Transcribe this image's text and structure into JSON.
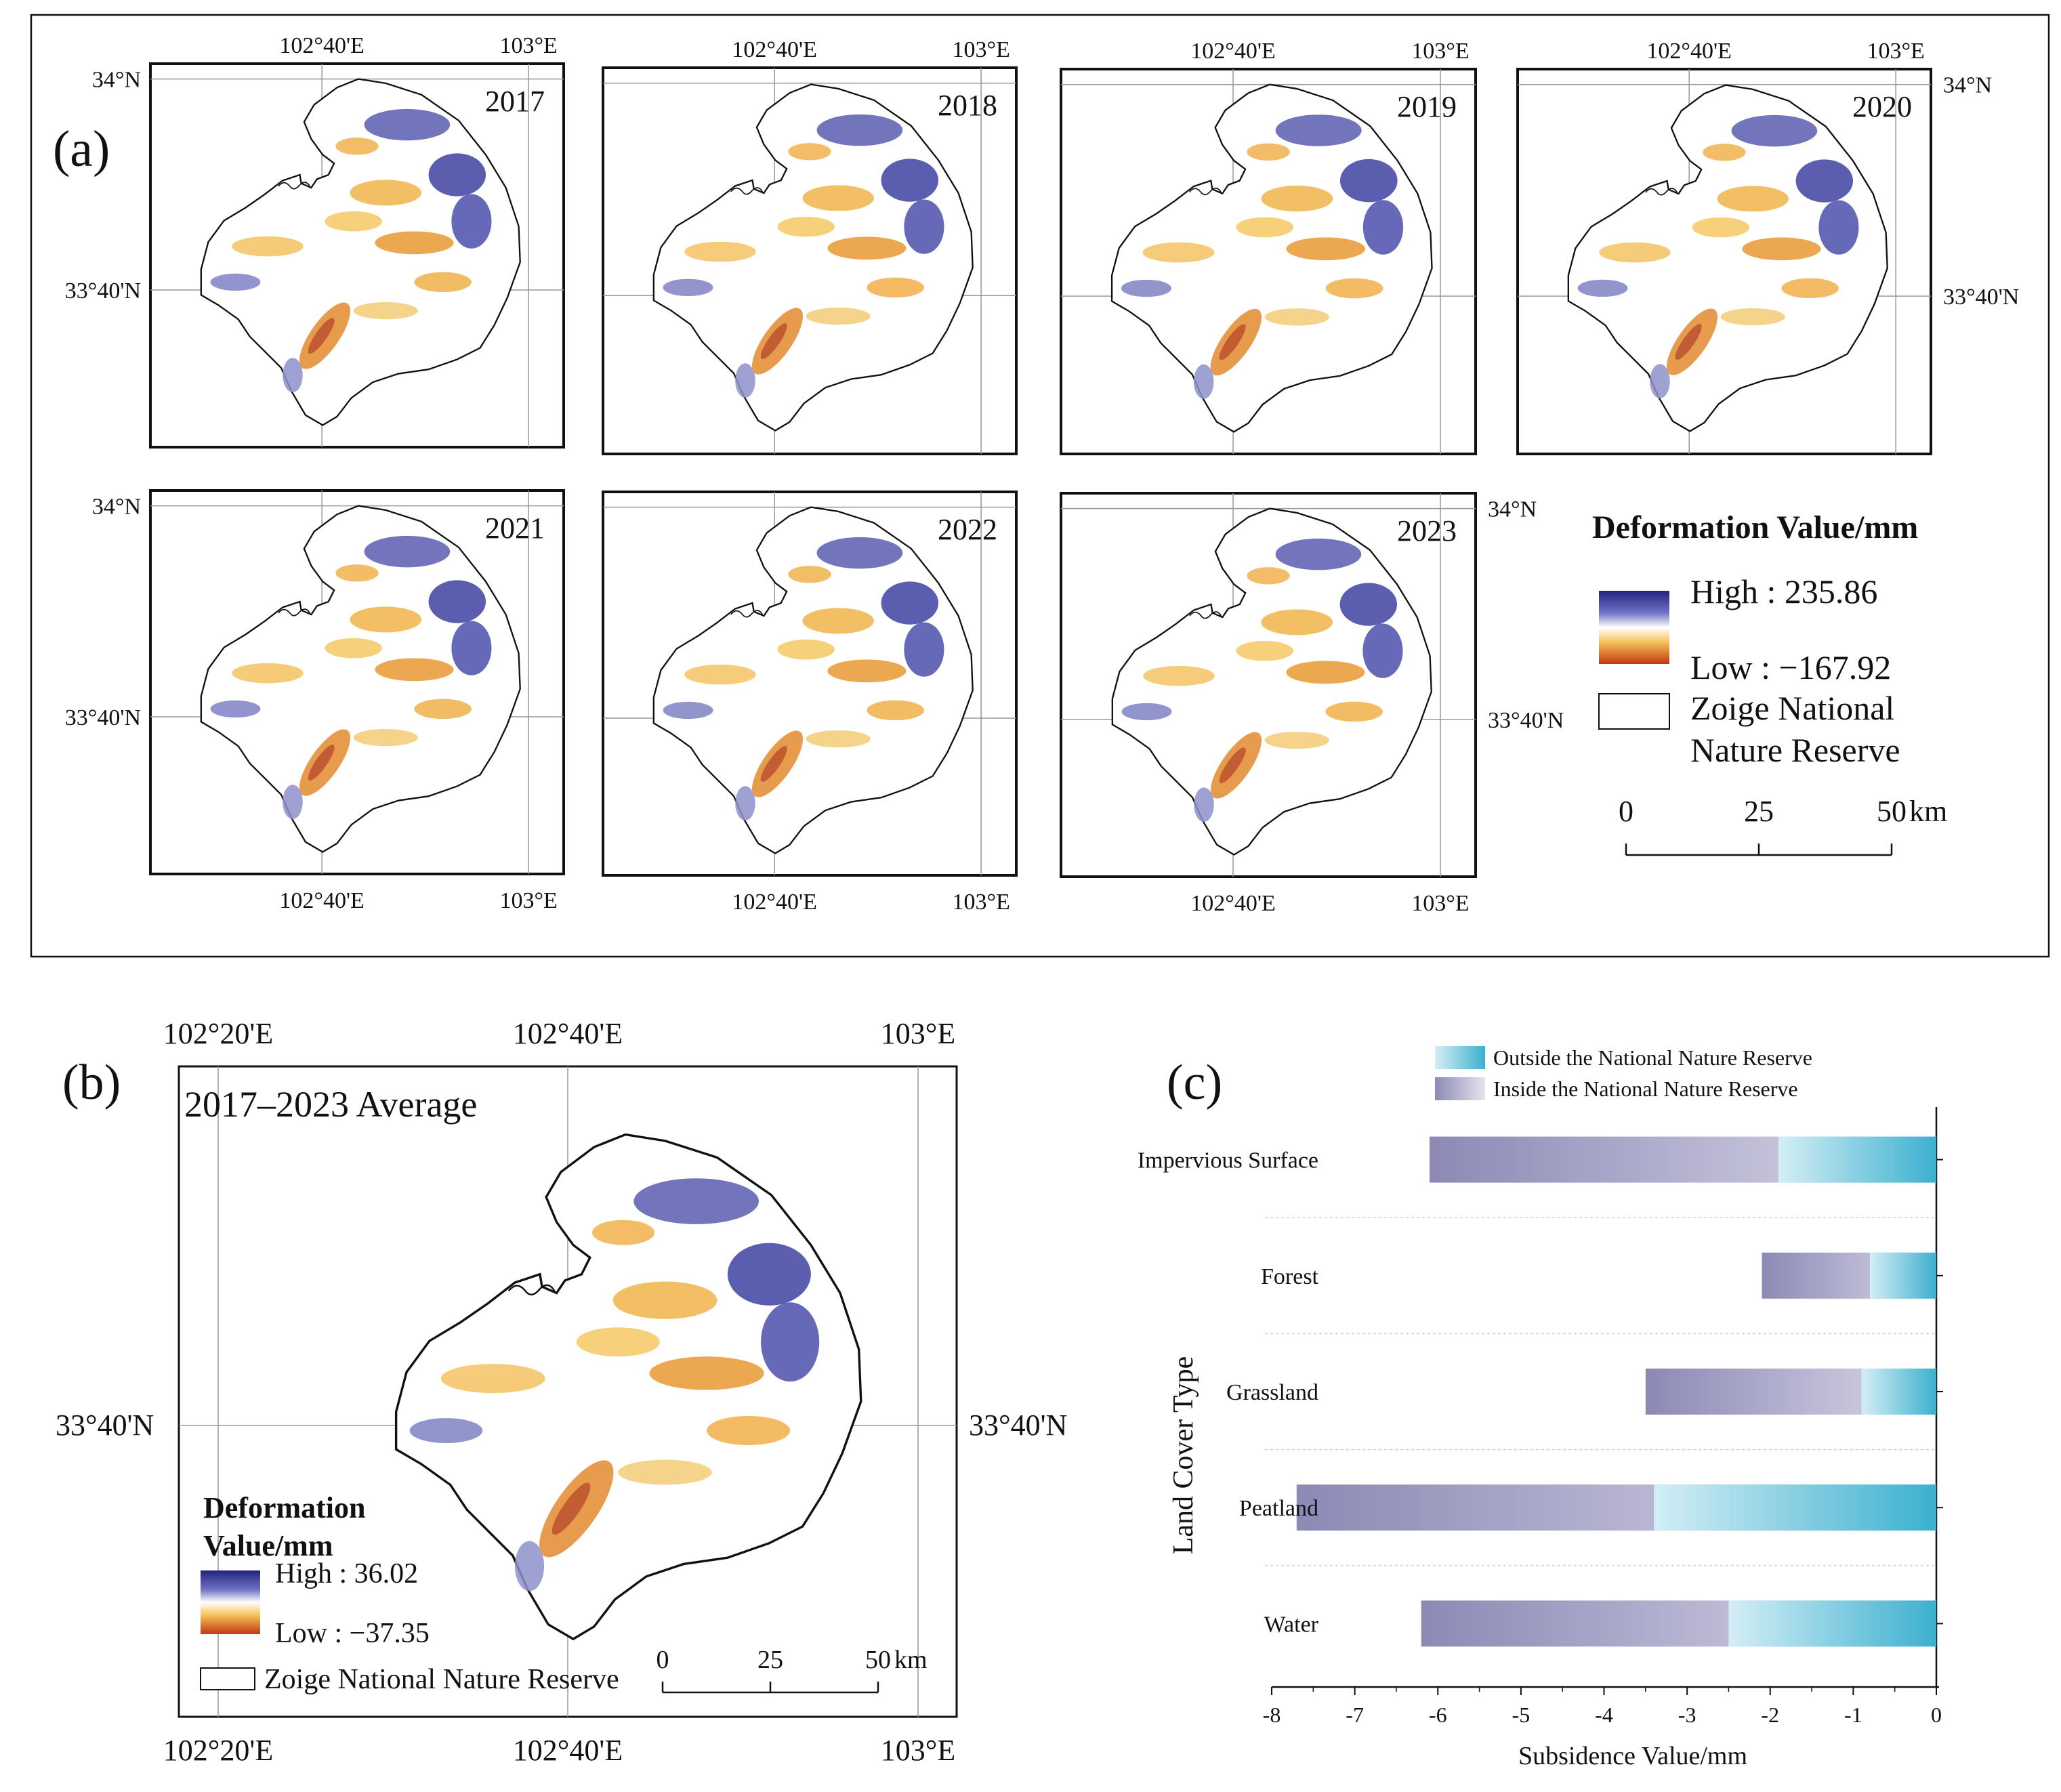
{
  "panel_a": {
    "label": "(a)",
    "lon_labels": [
      "102°40'E",
      "103°E"
    ],
    "lat_labels": [
      "34°N",
      "33°40'N"
    ],
    "years": [
      "2017",
      "2018",
      "2019",
      "2020",
      "2021",
      "2022",
      "2023"
    ],
    "legend": {
      "title": "Deformation Value/mm",
      "high": "High : 235.86",
      "low": "Low : −167.92",
      "reserve_line1": "Zoige National",
      "reserve_line2": "Nature Reserve",
      "scale_ticks": [
        "0",
        "25",
        "50"
      ],
      "scale_unit": "km"
    }
  },
  "panel_b": {
    "label": "(b)",
    "title": "2017–2023 Average",
    "lon_labels": [
      "102°20'E",
      "102°40'E",
      "103°E"
    ],
    "lat_label": "33°40'N",
    "legend": {
      "title_line1": "Deformation",
      "title_line2": "Value/mm",
      "high": "High : 36.02",
      "low": "Low : −37.35",
      "reserve": "Zoige National Nature Reserve",
      "scale_ticks": [
        "0",
        "25",
        "50"
      ],
      "scale_unit": "km"
    }
  },
  "colors": {
    "high": "#2b2f8f",
    "mid": "#ffffff",
    "low_light": "#f6c25a",
    "low": "#c0390e",
    "outside_bar": "#47b3cf",
    "inside_bar": "#8e8bb5"
  },
  "chart_data": {
    "type": "bar",
    "label": "(c)",
    "orientation": "horizontal",
    "categories": [
      "Impervious Surface",
      "Forest",
      "Grassland",
      "Peatland",
      "Water"
    ],
    "series": [
      {
        "name": "Outside the National Nature Reserve",
        "values": [
          -1.9,
          -0.8,
          -0.9,
          -3.4,
          -2.5
        ]
      },
      {
        "name": "Inside the National Nature Reserve",
        "values": [
          -6.1,
          -2.1,
          -3.5,
          -7.7,
          -6.2
        ]
      }
    ],
    "xlabel": "Subsidence Value/mm",
    "ylabel": "Land Cover Type",
    "xlim": [
      -8,
      0
    ],
    "x_ticks": [
      "-8",
      "-7",
      "-6",
      "-5",
      "-4",
      "-3",
      "-2",
      "-1",
      "0"
    ],
    "legend_position": "top"
  }
}
